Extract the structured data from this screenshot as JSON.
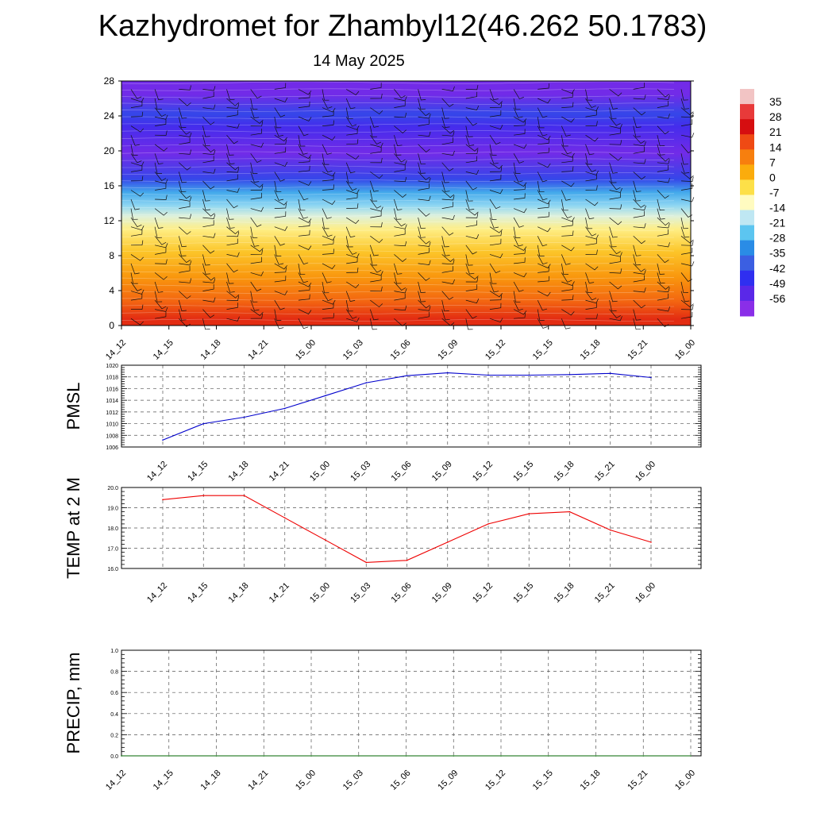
{
  "title": "Kazhydromet for Zhambyl12(46.262 50.1783)",
  "subtitle": "14 May 2025",
  "chart_data": [
    {
      "type": "heatmap",
      "name": "Vertical profile (wind barbs over colour field)",
      "x_ticks": [
        "14_12",
        "14_15",
        "14_18",
        "14_21",
        "15_00",
        "15_03",
        "15_06",
        "15_09",
        "15_12",
        "15_15",
        "15_18",
        "15_21",
        "16_00"
      ],
      "y_ticks": [
        0,
        4,
        8,
        12,
        16,
        20,
        24,
        28
      ],
      "ylim": [
        0,
        28
      ],
      "colorbar": {
        "labels": [
          35,
          28,
          21,
          14,
          7,
          0,
          -7,
          -14,
          -21,
          -28,
          -35,
          -42,
          -49,
          -56
        ],
        "colors": [
          "#f2c4c4",
          "#e83a3a",
          "#d60e10",
          "#ef4a14",
          "#f77f0e",
          "#fbac0c",
          "#fde048",
          "#fffbc0",
          "#bfe7f3",
          "#5cc5f0",
          "#2a8ce6",
          "#3b5fe2",
          "#2f2ff0",
          "#5a28e8",
          "#8a2ee8"
        ]
      },
      "bands": [
        {
          "from": 0,
          "to": 1.5,
          "value": 21
        },
        {
          "from": 1.5,
          "to": 4,
          "value": 14
        },
        {
          "from": 4,
          "to": 7,
          "value": 7
        },
        {
          "from": 7,
          "to": 10,
          "value": 0
        },
        {
          "from": 10,
          "to": 12,
          "value": -7
        },
        {
          "from": 12,
          "to": 13,
          "value": -14
        },
        {
          "from": 13,
          "to": 14.5,
          "value": -21
        },
        {
          "from": 14.5,
          "to": 16,
          "value": -28
        },
        {
          "from": 16,
          "to": 17.5,
          "value": -42
        },
        {
          "from": 17.5,
          "to": 22,
          "value": -56
        },
        {
          "from": 22,
          "to": 23.5,
          "value": -49
        },
        {
          "from": 23.5,
          "to": 25,
          "value": -42
        },
        {
          "from": 25,
          "to": 28,
          "value": -56
        }
      ],
      "grid": false
    },
    {
      "type": "line",
      "ylabel": "PMSL",
      "categories": [
        "14_12",
        "14_15",
        "14_18",
        "14_21",
        "15_00",
        "15_03",
        "15_06",
        "15_09",
        "15_12",
        "15_15",
        "15_18",
        "15_21",
        "16_00"
      ],
      "values": [
        1007.2,
        1010.0,
        1011.1,
        1012.6,
        1014.8,
        1017.0,
        1018.2,
        1018.7,
        1018.3,
        1018.3,
        1018.4,
        1018.6,
        1017.9
      ],
      "ylim": [
        1006,
        1020
      ],
      "y_ticks": [
        1006,
        1008,
        1010,
        1012,
        1014,
        1016,
        1018,
        1020
      ],
      "color": "#0000cc",
      "grid": true
    },
    {
      "type": "line",
      "ylabel": "TEMP at 2 M",
      "categories": [
        "14_12",
        "14_15",
        "14_18",
        "14_21",
        "15_00",
        "15_03",
        "15_06",
        "15_09",
        "15_12",
        "15_15",
        "15_18",
        "15_21",
        "16_00"
      ],
      "values": [
        19.4,
        19.6,
        19.6,
        18.5,
        17.4,
        16.3,
        16.4,
        17.3,
        18.2,
        18.7,
        18.8,
        17.9,
        17.3
      ],
      "ylim": [
        16.0,
        20.0
      ],
      "y_ticks": [
        "16.0",
        "17.0",
        "18.0",
        "19.0",
        "20.0"
      ],
      "color": "#ee0000",
      "grid": true
    },
    {
      "type": "line",
      "ylabel": "PRECIP, mm",
      "categories": [
        "14_12",
        "14_15",
        "14_18",
        "14_21",
        "15_00",
        "15_03",
        "15_06",
        "15_09",
        "15_12",
        "15_15",
        "15_18",
        "15_21",
        "16_00"
      ],
      "values": [
        0,
        0,
        0,
        0,
        0,
        0,
        0,
        0,
        0,
        0,
        0,
        0,
        0
      ],
      "ylim": [
        0,
        1.0
      ],
      "y_ticks": [
        "0.0",
        "0.2",
        "0.4",
        "0.6",
        "0.8",
        "1.0"
      ],
      "color": "#006600",
      "grid": true
    }
  ]
}
